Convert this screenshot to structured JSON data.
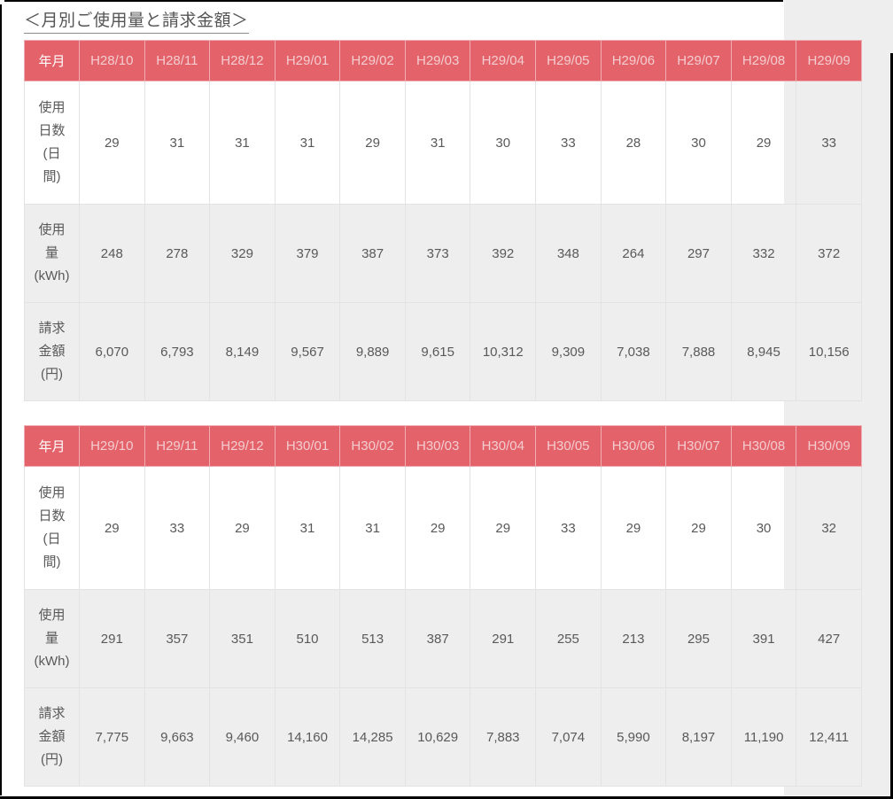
{
  "page": {
    "title": "＜月別ご使用量と請求金額＞"
  },
  "colors": {
    "header_bg": "#e4626a",
    "header_corner_text": "#ffffff",
    "header_month_text": "#f3cdd0",
    "row_stripe": "#eeeeee",
    "page_side_bg": "#eeeeee",
    "cell_text": "#595959",
    "cell_border": "#e3e3e3"
  },
  "tables": [
    {
      "corner_label": "年月",
      "months": [
        "H28/10",
        "H28/11",
        "H28/12",
        "H29/01",
        "H29/02",
        "H29/03",
        "H29/04",
        "H29/05",
        "H29/06",
        "H29/07",
        "H29/08",
        "H29/09"
      ],
      "rows": [
        {
          "key": "usage-days",
          "label": "使用\n日数\n(日\n間)",
          "values": [
            "29",
            "31",
            "31",
            "31",
            "29",
            "31",
            "30",
            "33",
            "28",
            "30",
            "29",
            "33"
          ]
        },
        {
          "key": "usage-kwh",
          "label": "使用\n量\n(kWh)",
          "values": [
            "248",
            "278",
            "329",
            "379",
            "387",
            "373",
            "392",
            "348",
            "264",
            "297",
            "332",
            "372"
          ]
        },
        {
          "key": "billing-yen",
          "label": "請求\n金額\n(円)",
          "values": [
            "6,070",
            "6,793",
            "8,149",
            "9,567",
            "9,889",
            "9,615",
            "10,312",
            "9,309",
            "7,038",
            "7,888",
            "8,945",
            "10,156"
          ]
        }
      ]
    },
    {
      "corner_label": "年月",
      "months": [
        "H29/10",
        "H29/11",
        "H29/12",
        "H30/01",
        "H30/02",
        "H30/03",
        "H30/04",
        "H30/05",
        "H30/06",
        "H30/07",
        "H30/08",
        "H30/09"
      ],
      "rows": [
        {
          "key": "usage-days",
          "label": "使用\n日数\n(日\n間)",
          "values": [
            "29",
            "33",
            "29",
            "31",
            "31",
            "29",
            "29",
            "33",
            "29",
            "29",
            "30",
            "32"
          ]
        },
        {
          "key": "usage-kwh",
          "label": "使用\n量\n(kWh)",
          "values": [
            "291",
            "357",
            "351",
            "510",
            "513",
            "387",
            "291",
            "255",
            "213",
            "295",
            "391",
            "427"
          ]
        },
        {
          "key": "billing-yen",
          "label": "請求\n金額\n(円)",
          "values": [
            "7,775",
            "9,663",
            "9,460",
            "14,160",
            "14,285",
            "10,629",
            "7,883",
            "7,074",
            "5,990",
            "8,197",
            "11,190",
            "12,411"
          ]
        }
      ]
    }
  ]
}
